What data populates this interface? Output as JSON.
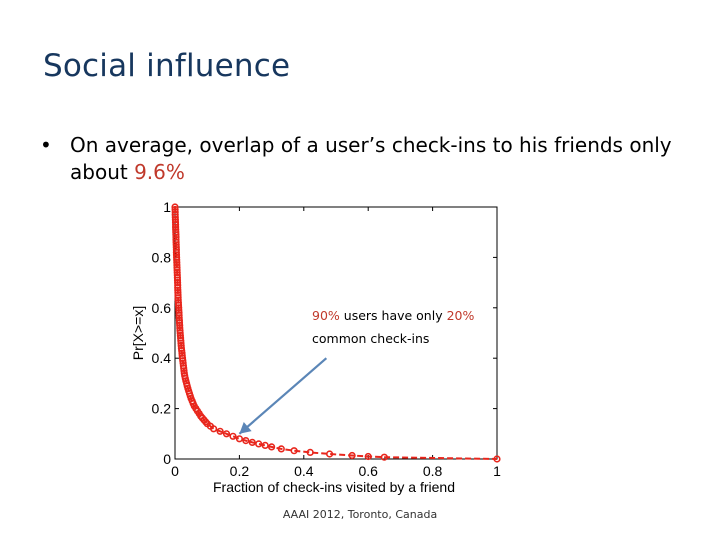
{
  "slide": {
    "title": "Social influence",
    "bullet_prefix": "On average, overlap of a user’s check-ins to his friends only about ",
    "bullet_highlight": "9.6%",
    "footer": "AAAI 2012, Toronto, Canada",
    "bullet_symbol": "•"
  },
  "annotation": {
    "line1_a": "90%",
    "line1_b": " users have only ",
    "line1_c": "20%",
    "line2": "common check-ins"
  },
  "colors": {
    "title": "#17375e",
    "highlight": "#c0392b",
    "series": "#e8261c",
    "arrow": "#5b86b7"
  },
  "chart_data": {
    "type": "line",
    "xlabel": "Fraction of check-ins visited by a friend",
    "ylabel": "Pr[X>=x]",
    "xlim": [
      0,
      1
    ],
    "ylim": [
      0,
      1
    ],
    "xticks": [
      "0",
      "0.2",
      "0.4",
      "0.6",
      "0.8",
      "1"
    ],
    "yticks": [
      "0",
      "0.2",
      "0.4",
      "0.6",
      "0.8",
      "1"
    ],
    "grid": false,
    "series": [
      {
        "marker": "circle",
        "x": [
          0,
          0.005,
          0.01,
          0.015,
          0.02,
          0.025,
          0.03,
          0.04,
          0.05,
          0.06,
          0.07,
          0.08,
          0.09,
          0.1,
          0.12,
          0.14,
          0.16,
          0.18,
          0.2,
          0.22,
          0.24,
          0.26,
          0.28,
          0.3,
          0.33,
          0.37,
          0.42,
          0.48,
          0.55,
          0.6,
          0.65,
          1
        ],
        "y": [
          1.0,
          0.8,
          0.63,
          0.52,
          0.44,
          0.38,
          0.33,
          0.28,
          0.24,
          0.21,
          0.19,
          0.17,
          0.155,
          0.14,
          0.12,
          0.11,
          0.1,
          0.09,
          0.08,
          0.073,
          0.066,
          0.06,
          0.054,
          0.048,
          0.04,
          0.033,
          0.026,
          0.02,
          0.014,
          0.01,
          0.007,
          0.0
        ]
      }
    ],
    "arrow": {
      "from": [
        0.47,
        0.4
      ],
      "to": [
        0.2,
        0.1
      ]
    }
  }
}
